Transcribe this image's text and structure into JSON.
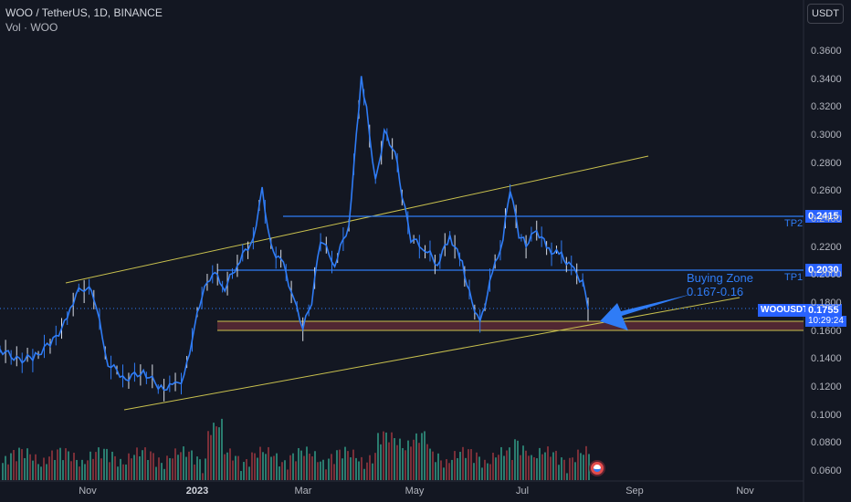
{
  "header": {
    "title": "WOO / TetherUS, 1D, BINANCE",
    "indicator": "Vol · WOO"
  },
  "currency_button": "USDT",
  "annotation": {
    "line1": "Buying Zone",
    "line2": "0.167-0.16"
  },
  "targets": [
    {
      "label": "TP2",
      "price": 0.2415,
      "price_label": "0.2415"
    },
    {
      "label": "TP1",
      "price": 0.203,
      "price_label": "0.2030"
    }
  ],
  "current": {
    "symbol": "WOOUSDT",
    "price": 0.1755,
    "price_label": "0.1755",
    "countdown": "10:29:24"
  },
  "colors": {
    "background": "#131722",
    "up": "#2f7cf6",
    "down": "#d9dde6",
    "line": "#2f7cf6",
    "trend": "#c9c14e",
    "zone": "#5c2a35",
    "vol_up": "#2a7c6f",
    "vol_down": "#7a2f38"
  },
  "chart_data": {
    "type": "line",
    "title": "WOO / TetherUS, 1D, BINANCE",
    "x_axis_labels": [
      "Nov",
      "2023",
      "Mar",
      "May",
      "Jul",
      "Sep",
      "Nov"
    ],
    "y_axis_labels": [
      "0.3600",
      "0.3400",
      "0.3200",
      "0.3000",
      "0.2800",
      "0.2600",
      "0.2400",
      "0.2200",
      "0.2000",
      "0.1800",
      "0.1600",
      "0.1400",
      "0.1200",
      "0.1000",
      "0.0800",
      "0.0600"
    ],
    "ylim": [
      0.055,
      0.375
    ],
    "grid": false,
    "price_series": {
      "name": "WOOUSDT",
      "x": [
        "2022-09-20",
        "2022-10-01",
        "2022-10-10",
        "2022-10-20",
        "2022-10-28",
        "2022-11-02",
        "2022-11-08",
        "2022-11-12",
        "2022-11-20",
        "2022-11-30",
        "2022-12-10",
        "2022-12-20",
        "2022-12-28",
        "2023-01-02",
        "2023-01-08",
        "2023-01-12",
        "2023-01-18",
        "2023-01-25",
        "2023-02-01",
        "2023-02-10",
        "2023-02-15",
        "2023-02-20",
        "2023-02-27",
        "2023-03-05",
        "2023-03-10",
        "2023-03-15",
        "2023-03-20",
        "2023-03-28",
        "2023-04-05",
        "2023-04-12",
        "2023-04-15",
        "2023-04-20",
        "2023-04-25",
        "2023-05-01",
        "2023-05-05",
        "2023-05-10",
        "2023-05-18",
        "2023-05-25",
        "2023-06-01",
        "2023-06-08",
        "2023-06-12",
        "2023-06-18",
        "2023-06-25",
        "2023-07-01",
        "2023-07-05",
        "2023-07-10",
        "2023-07-14",
        "2023-07-20",
        "2023-07-27",
        "2023-08-03",
        "2023-08-10",
        "2023-08-15",
        "2023-08-18"
      ],
      "y": [
        0.147,
        0.139,
        0.142,
        0.153,
        0.168,
        0.187,
        0.192,
        0.185,
        0.137,
        0.126,
        0.131,
        0.119,
        0.121,
        0.127,
        0.164,
        0.185,
        0.203,
        0.191,
        0.208,
        0.226,
        0.261,
        0.22,
        0.207,
        0.182,
        0.162,
        0.181,
        0.226,
        0.208,
        0.236,
        0.341,
        0.318,
        0.266,
        0.302,
        0.288,
        0.257,
        0.226,
        0.219,
        0.208,
        0.228,
        0.208,
        0.187,
        0.165,
        0.201,
        0.226,
        0.262,
        0.229,
        0.222,
        0.232,
        0.218,
        0.214,
        0.203,
        0.195,
        0.1755
      ]
    },
    "levels": [
      {
        "name": "TP2",
        "value": 0.2415
      },
      {
        "name": "TP1",
        "value": 0.203
      }
    ],
    "buying_zone": [
      0.16,
      0.167
    ],
    "volume": {
      "note": "relative daily volume bars shown along the bottom of the chart"
    }
  }
}
